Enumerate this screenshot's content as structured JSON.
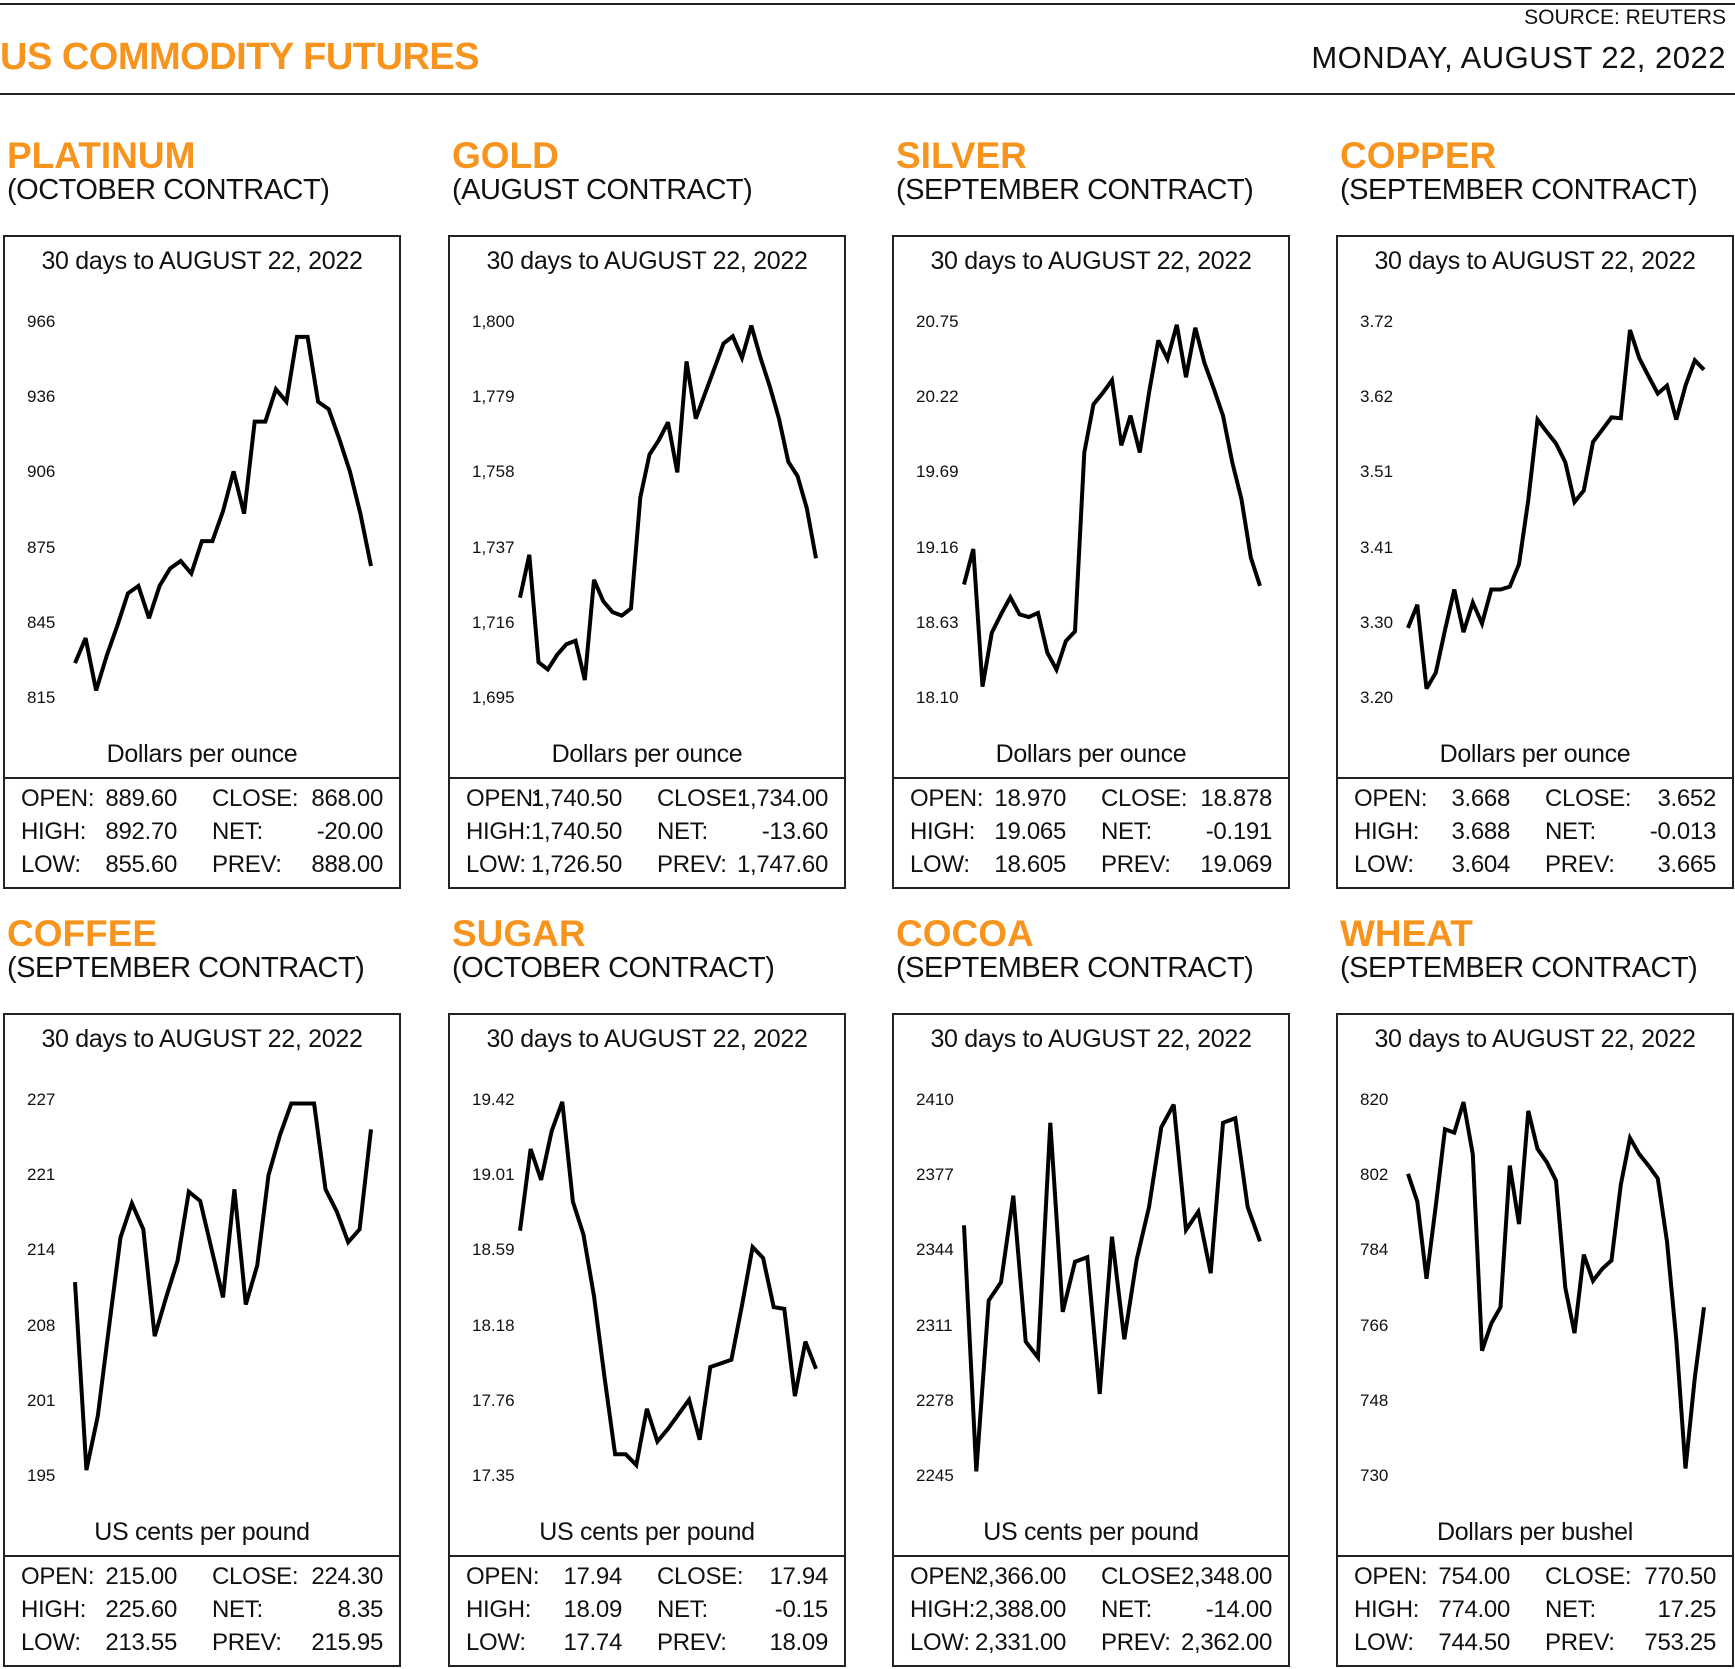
{
  "header": {
    "title": "US COMMODITY FUTURES",
    "source": "SOURCE: REUTERS",
    "date": "MONDAY, AUGUST 22, 2022",
    "accent_color": "#F7941D"
  },
  "panels": [
    {
      "name": "PLATINUM",
      "contract": "(OCTOBER CONTRACT)",
      "stats": [
        {
          "l1": "OPEN:",
          "v1": "889.60",
          "l2": "CLOSE:",
          "v2": "868.00"
        },
        {
          "l1": "HIGH:",
          "v1": "892.70",
          "l2": "NET:",
          "v2": "-20.00"
        },
        {
          "l1": "LOW:",
          "v1": "855.60",
          "l2": "PREV:",
          "v2": "888.00"
        }
      ]
    },
    {
      "name": "GOLD",
      "contract": "(AUGUST CONTRACT)",
      "stats": [
        {
          "l1": "OPEN:",
          "v1": "1,740.50",
          "l2": "CLOSE:",
          "v2": "1,734.00"
        },
        {
          "l1": "HIGH:",
          "v1": "1,740.50",
          "l2": "NET:",
          "v2": "-13.60"
        },
        {
          "l1": "LOW:",
          "v1": "1,726.50",
          "l2": "PREV:",
          "v2": "1,747.60"
        }
      ]
    },
    {
      "name": "SILVER",
      "contract": "(SEPTEMBER CONTRACT)",
      "stats": [
        {
          "l1": "OPEN:",
          "v1": "18.970",
          "l2": "CLOSE:",
          "v2": "18.878"
        },
        {
          "l1": "HIGH:",
          "v1": "19.065",
          "l2": "NET:",
          "v2": "-0.191"
        },
        {
          "l1": "LOW:",
          "v1": "18.605",
          "l2": "PREV:",
          "v2": "19.069"
        }
      ]
    },
    {
      "name": "COPPER",
      "contract": "(SEPTEMBER CONTRACT)",
      "stats": [
        {
          "l1": "OPEN:",
          "v1": "3.668",
          "l2": "CLOSE:",
          "v2": "3.652"
        },
        {
          "l1": "HIGH:",
          "v1": "3.688",
          "l2": "NET:",
          "v2": "-0.013"
        },
        {
          "l1": "LOW:",
          "v1": "3.604",
          "l2": "PREV:",
          "v2": "3.665"
        }
      ]
    },
    {
      "name": "COFFEE",
      "contract": "(SEPTEMBER CONTRACT)",
      "stats": [
        {
          "l1": "OPEN:",
          "v1": "215.00",
          "l2": "CLOSE:",
          "v2": "224.30"
        },
        {
          "l1": "HIGH:",
          "v1": "225.60",
          "l2": "NET:",
          "v2": "8.35"
        },
        {
          "l1": "LOW:",
          "v1": "213.55",
          "l2": "PREV:",
          "v2": "215.95"
        }
      ]
    },
    {
      "name": "SUGAR",
      "contract": "(OCTOBER CONTRACT)",
      "stats": [
        {
          "l1": "OPEN:",
          "v1": "17.94",
          "l2": "CLOSE:",
          "v2": "17.94"
        },
        {
          "l1": "HIGH:",
          "v1": "18.09",
          "l2": "NET:",
          "v2": "-0.15"
        },
        {
          "l1": "LOW:",
          "v1": "17.74",
          "l2": "PREV:",
          "v2": "18.09"
        }
      ]
    },
    {
      "name": "COCOA",
      "contract": "(SEPTEMBER CONTRACT)",
      "stats": [
        {
          "l1": "OPEN:",
          "v1": "2,366.00",
          "l2": "CLOSE:",
          "v2": "2,348.00"
        },
        {
          "l1": "HIGH:",
          "v1": "2,388.00",
          "l2": "NET:",
          "v2": "-14.00"
        },
        {
          "l1": "LOW:",
          "v1": "2,331.00",
          "l2": "PREV:",
          "v2": "2,362.00"
        }
      ]
    },
    {
      "name": "WHEAT",
      "contract": "(SEPTEMBER CONTRACT)",
      "stats": [
        {
          "l1": "OPEN:",
          "v1": "754.00",
          "l2": "CLOSE:",
          "v2": "770.50"
        },
        {
          "l1": "HIGH:",
          "v1": "774.00",
          "l2": "NET:",
          "v2": "17.25"
        },
        {
          "l1": "LOW:",
          "v1": "744.50",
          "l2": "PREV:",
          "v2": "753.25"
        }
      ]
    }
  ],
  "chart_data": [
    {
      "type": "line",
      "title": "30 days to AUGUST 22, 2022",
      "ylabel": "Dollars per ounce",
      "yticks": [
        "966",
        "936",
        "906",
        "875",
        "845",
        "815"
      ],
      "ylim": [
        815,
        966
      ],
      "grid": false,
      "values": [
        829,
        839,
        818,
        832,
        844,
        857,
        860,
        847,
        860,
        867,
        870,
        865,
        878,
        878,
        890,
        906,
        889,
        926,
        926,
        939,
        934,
        960,
        960,
        934,
        931,
        919,
        906,
        889,
        868
      ]
    },
    {
      "type": "line",
      "title": "30 days to AUGUST 22, 2022",
      "ylabel": "Dollars per ounce",
      "yticks": [
        "1,800",
        "1,779",
        "1,758",
        "1,737",
        "1,716",
        "1,695"
      ],
      "ylim": [
        1695,
        1800
      ],
      "grid": false,
      "values": [
        1723,
        1735,
        1705,
        1703,
        1707,
        1710,
        1711,
        1700,
        1728,
        1722,
        1719,
        1718,
        1720,
        1751,
        1763,
        1767,
        1772,
        1758,
        1789,
        1773,
        1780,
        1787,
        1794,
        1796,
        1790,
        1799,
        1790,
        1782,
        1773,
        1761,
        1757,
        1748,
        1734
      ]
    },
    {
      "type": "line",
      "title": "30 days to AUGUST 22, 2022",
      "ylabel": "Dollars per ounce",
      "yticks": [
        "20.75",
        "20.22",
        "19.69",
        "19.16",
        "18.63",
        "18.10"
      ],
      "ylim": [
        18.1,
        20.75
      ],
      "grid": false,
      "values": [
        18.9,
        19.15,
        18.18,
        18.56,
        18.69,
        18.81,
        18.69,
        18.67,
        18.7,
        18.42,
        18.3,
        18.5,
        18.57,
        19.83,
        20.17,
        20.25,
        20.34,
        19.88,
        20.09,
        19.83,
        20.25,
        20.62,
        20.49,
        20.73,
        20.36,
        20.71,
        20.46,
        20.28,
        20.09,
        19.76,
        19.5,
        19.09,
        18.89
      ]
    },
    {
      "type": "line",
      "title": "30 days to AUGUST 22, 2022",
      "ylabel": "Dollars per ounce",
      "yticks": [
        "3.72",
        "3.62",
        "3.51",
        "3.41",
        "3.30",
        "3.20"
      ],
      "ylim": [
        3.2,
        3.72
      ],
      "grid": false,
      "values": [
        3.297,
        3.329,
        3.213,
        3.235,
        3.294,
        3.35,
        3.291,
        3.332,
        3.303,
        3.35,
        3.35,
        3.354,
        3.385,
        3.474,
        3.585,
        3.568,
        3.552,
        3.526,
        3.471,
        3.487,
        3.554,
        3.571,
        3.588,
        3.587,
        3.709,
        3.67,
        3.645,
        3.621,
        3.632,
        3.585,
        3.632,
        3.667,
        3.654
      ]
    },
    {
      "type": "line",
      "title": "30 days to AUGUST 22, 2022",
      "ylabel": "US cents per pound",
      "yticks": [
        "227",
        "221",
        "214",
        "208",
        "201",
        "195"
      ],
      "ylim": [
        195,
        227
      ],
      "grid": false,
      "values": [
        211.5,
        195.5,
        200.1,
        207.8,
        215.3,
        218.2,
        216.0,
        206.9,
        210.2,
        213.3,
        219.2,
        218.4,
        214.3,
        210.2,
        219.4,
        209.6,
        212.9,
        220.6,
        224.0,
        226.7,
        226.7,
        226.7,
        219.4,
        217.5,
        214.9,
        216.0,
        224.5
      ]
    },
    {
      "type": "line",
      "title": "30 days to AUGUST 22, 2022",
      "ylabel": "US cents per pound",
      "yticks": [
        "19.42",
        "19.01",
        "18.59",
        "18.18",
        "17.76",
        "17.35"
      ],
      "ylim": [
        17.35,
        19.42
      ],
      "grid": false,
      "values": [
        18.7,
        19.15,
        18.98,
        19.25,
        19.41,
        18.86,
        18.68,
        18.34,
        17.89,
        17.47,
        17.47,
        17.41,
        17.72,
        17.54,
        17.61,
        17.69,
        17.77,
        17.55,
        17.95,
        17.97,
        17.99,
        18.29,
        18.61,
        18.55,
        18.28,
        18.27,
        17.79,
        18.09,
        17.94
      ]
    },
    {
      "type": "line",
      "title": "30 days to AUGUST 22, 2022",
      "ylabel": "US cents per pound",
      "yticks": [
        "2410",
        "2377",
        "2344",
        "2311",
        "2278",
        "2245"
      ],
      "ylim": [
        2245,
        2410
      ],
      "grid": false,
      "values": [
        2355,
        2247,
        2322,
        2330,
        2368,
        2304,
        2297,
        2400,
        2317,
        2339,
        2341,
        2281,
        2350,
        2305,
        2340,
        2363,
        2398,
        2408,
        2353,
        2361,
        2334,
        2400,
        2402,
        2363,
        2348
      ]
    },
    {
      "type": "line",
      "title": "30 days to AUGUST 22, 2022",
      "ylabel": "Dollars per bushel",
      "yticks": [
        "820",
        "802",
        "784",
        "766",
        "748",
        "730"
      ],
      "ylim": [
        730,
        820
      ],
      "grid": false,
      "values": [
        802.3,
        795.7,
        777.2,
        794.7,
        813.0,
        812.2,
        819.5,
        807.0,
        760.0,
        766.5,
        770.4,
        804.3,
        790.3,
        817.4,
        808.3,
        805.1,
        800.7,
        775.1,
        764.2,
        783.0,
        776.7,
        779.6,
        781.6,
        799.7,
        810.9,
        807.0,
        804.3,
        801.2,
        786.1,
        762.6,
        731.8,
        753.5,
        770.4
      ]
    }
  ]
}
